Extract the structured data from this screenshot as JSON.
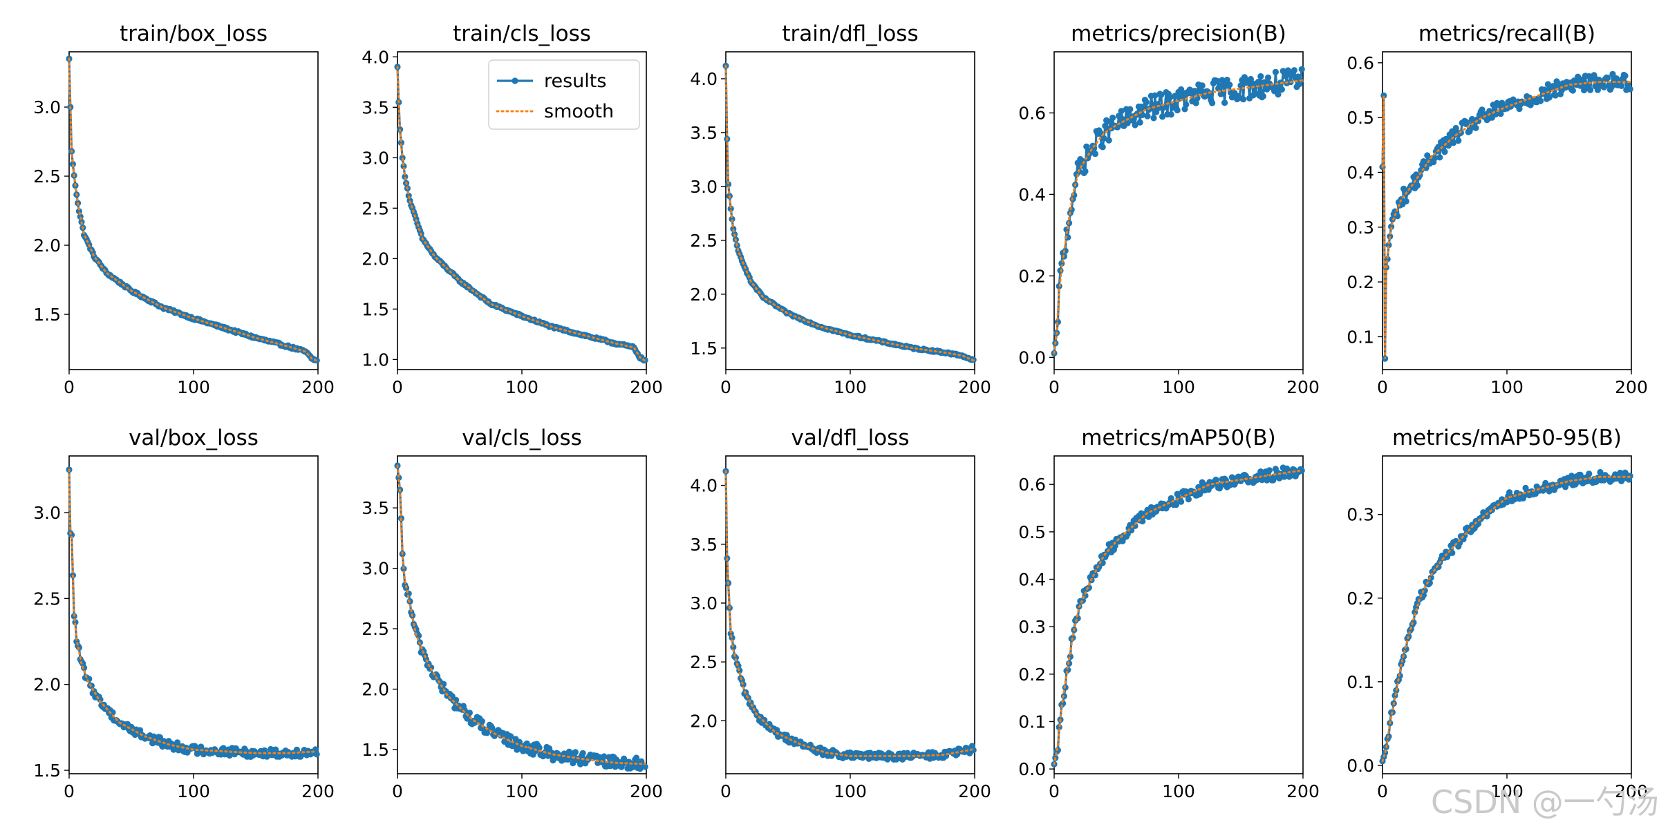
{
  "figure": {
    "legend": {
      "results": "results",
      "smooth": "smooth"
    },
    "colors": {
      "results": "#1f77b4",
      "smooth": "#ff7f0e",
      "axis": "#000000"
    },
    "watermark": "CSDN @一勺汤"
  },
  "chart_data": [
    {
      "type": "line",
      "title": "train/box_loss",
      "xlim": [
        0,
        200
      ],
      "xticks": [
        0,
        100,
        200
      ],
      "ylim": [
        1.1,
        3.4
      ],
      "yticks": [
        1.5,
        2.0,
        2.5,
        3.0
      ],
      "ytick_labels": [
        "1.5",
        "2.0",
        "2.5",
        "3.0"
      ],
      "legend": false,
      "noise": 0.008,
      "curve": [
        [
          0,
          3.35
        ],
        [
          1,
          3.0
        ],
        [
          2,
          2.68
        ],
        [
          4,
          2.5
        ],
        [
          6,
          2.37
        ],
        [
          8,
          2.25
        ],
        [
          12,
          2.08
        ],
        [
          20,
          1.92
        ],
        [
          30,
          1.8
        ],
        [
          50,
          1.67
        ],
        [
          75,
          1.55
        ],
        [
          100,
          1.47
        ],
        [
          125,
          1.4
        ],
        [
          150,
          1.33
        ],
        [
          175,
          1.27
        ],
        [
          190,
          1.23
        ],
        [
          195,
          1.18
        ],
        [
          200,
          1.16
        ]
      ]
    },
    {
      "type": "line",
      "title": "train/cls_loss",
      "xlim": [
        0,
        200
      ],
      "xticks": [
        0,
        100,
        200
      ],
      "ylim": [
        0.9,
        4.05
      ],
      "yticks": [
        1.0,
        1.5,
        2.0,
        2.5,
        3.0,
        3.5,
        4.0
      ],
      "ytick_labels": [
        "1.0",
        "1.5",
        "2.0",
        "2.5",
        "3.0",
        "3.5",
        "4.0"
      ],
      "legend": true,
      "noise": 0.01,
      "curve": [
        [
          0,
          3.9
        ],
        [
          1,
          3.55
        ],
        [
          2,
          3.28
        ],
        [
          4,
          3.0
        ],
        [
          6,
          2.82
        ],
        [
          10,
          2.57
        ],
        [
          20,
          2.2
        ],
        [
          30,
          2.02
        ],
        [
          50,
          1.78
        ],
        [
          75,
          1.55
        ],
        [
          100,
          1.43
        ],
        [
          125,
          1.32
        ],
        [
          150,
          1.24
        ],
        [
          175,
          1.16
        ],
        [
          190,
          1.12
        ],
        [
          195,
          1.02
        ],
        [
          200,
          0.98
        ]
      ]
    },
    {
      "type": "line",
      "title": "train/dfl_loss",
      "xlim": [
        0,
        200
      ],
      "xticks": [
        0,
        100,
        200
      ],
      "ylim": [
        1.3,
        4.25
      ],
      "yticks": [
        1.5,
        2.0,
        2.5,
        3.0,
        3.5,
        4.0
      ],
      "ytick_labels": [
        "1.5",
        "2.0",
        "2.5",
        "3.0",
        "3.5",
        "4.0"
      ],
      "legend": false,
      "noise": 0.008,
      "curve": [
        [
          0,
          4.12
        ],
        [
          1,
          3.44
        ],
        [
          2,
          3.02
        ],
        [
          4,
          2.8
        ],
        [
          6,
          2.6
        ],
        [
          10,
          2.4
        ],
        [
          20,
          2.12
        ],
        [
          30,
          1.97
        ],
        [
          50,
          1.82
        ],
        [
          75,
          1.7
        ],
        [
          100,
          1.62
        ],
        [
          125,
          1.56
        ],
        [
          150,
          1.5
        ],
        [
          175,
          1.46
        ],
        [
          190,
          1.43
        ],
        [
          200,
          1.38
        ]
      ]
    },
    {
      "type": "line",
      "title": "metrics/precision(B)",
      "xlim": [
        0,
        200
      ],
      "xticks": [
        0,
        100,
        200
      ],
      "ylim": [
        -0.03,
        0.75
      ],
      "yticks": [
        0.0,
        0.2,
        0.4,
        0.6
      ],
      "ytick_labels": [
        "0.0",
        "0.2",
        "0.4",
        "0.6"
      ],
      "legend": false,
      "noise": 0.03,
      "curve": [
        [
          0,
          0.01
        ],
        [
          2,
          0.06
        ],
        [
          4,
          0.16
        ],
        [
          6,
          0.22
        ],
        [
          10,
          0.3
        ],
        [
          15,
          0.4
        ],
        [
          20,
          0.46
        ],
        [
          30,
          0.51
        ],
        [
          40,
          0.55
        ],
        [
          50,
          0.57
        ],
        [
          75,
          0.61
        ],
        [
          100,
          0.63
        ],
        [
          125,
          0.65
        ],
        [
          150,
          0.66
        ],
        [
          175,
          0.67
        ],
        [
          200,
          0.68
        ]
      ]
    },
    {
      "type": "line",
      "title": "metrics/recall(B)",
      "xlim": [
        0,
        200
      ],
      "xticks": [
        0,
        100,
        200
      ],
      "ylim": [
        0.04,
        0.62
      ],
      "yticks": [
        0.1,
        0.2,
        0.3,
        0.4,
        0.5,
        0.6
      ],
      "ytick_labels": [
        "0.1",
        "0.2",
        "0.3",
        "0.4",
        "0.5",
        "0.6"
      ],
      "legend": false,
      "noise": 0.015,
      "curve": [
        [
          0,
          0.41
        ],
        [
          1,
          0.54
        ],
        [
          2,
          0.06
        ],
        [
          3,
          0.22
        ],
        [
          5,
          0.27
        ],
        [
          8,
          0.31
        ],
        [
          15,
          0.35
        ],
        [
          25,
          0.38
        ],
        [
          40,
          0.43
        ],
        [
          60,
          0.47
        ],
        [
          80,
          0.5
        ],
        [
          100,
          0.52
        ],
        [
          125,
          0.54
        ],
        [
          150,
          0.56
        ],
        [
          175,
          0.565
        ],
        [
          200,
          0.565
        ]
      ]
    },
    {
      "type": "line",
      "title": "val/box_loss",
      "xlim": [
        0,
        200
      ],
      "xticks": [
        0,
        100,
        200
      ],
      "ylim": [
        1.48,
        3.33
      ],
      "yticks": [
        1.5,
        2.0,
        2.5,
        3.0
      ],
      "ytick_labels": [
        "1.5",
        "2.0",
        "2.5",
        "3.0"
      ],
      "legend": false,
      "noise": 0.025,
      "curve": [
        [
          0,
          3.25
        ],
        [
          1,
          2.88
        ],
        [
          2,
          2.87
        ],
        [
          4,
          2.42
        ],
        [
          6,
          2.26
        ],
        [
          10,
          2.12
        ],
        [
          15,
          2.02
        ],
        [
          25,
          1.9
        ],
        [
          40,
          1.78
        ],
        [
          60,
          1.7
        ],
        [
          80,
          1.65
        ],
        [
          100,
          1.62
        ],
        [
          125,
          1.61
        ],
        [
          150,
          1.6
        ],
        [
          175,
          1.6
        ],
        [
          200,
          1.61
        ]
      ]
    },
    {
      "type": "line",
      "title": "val/cls_loss",
      "xlim": [
        0,
        200
      ],
      "xticks": [
        0,
        100,
        200
      ],
      "ylim": [
        1.3,
        3.93
      ],
      "yticks": [
        1.5,
        2.0,
        2.5,
        3.0,
        3.5
      ],
      "ytick_labels": [
        "1.5",
        "2.0",
        "2.5",
        "3.0",
        "3.5"
      ],
      "legend": false,
      "noise": 0.05,
      "curve": [
        [
          0,
          3.85
        ],
        [
          2,
          3.65
        ],
        [
          4,
          3.1
        ],
        [
          6,
          2.9
        ],
        [
          10,
          2.7
        ],
        [
          15,
          2.45
        ],
        [
          25,
          2.2
        ],
        [
          40,
          1.95
        ],
        [
          60,
          1.75
        ],
        [
          80,
          1.62
        ],
        [
          100,
          1.53
        ],
        [
          125,
          1.46
        ],
        [
          150,
          1.42
        ],
        [
          175,
          1.39
        ],
        [
          200,
          1.38
        ]
      ]
    },
    {
      "type": "line",
      "title": "val/dfl_loss",
      "xlim": [
        0,
        200
      ],
      "xticks": [
        0,
        100,
        200
      ],
      "ylim": [
        1.55,
        4.25
      ],
      "yticks": [
        2.0,
        2.5,
        3.0,
        3.5,
        4.0
      ],
      "ytick_labels": [
        "2.0",
        "2.5",
        "3.0",
        "3.5",
        "4.0"
      ],
      "legend": false,
      "noise": 0.03,
      "curve": [
        [
          0,
          4.12
        ],
        [
          1,
          3.38
        ],
        [
          4,
          2.75
        ],
        [
          6,
          2.6
        ],
        [
          10,
          2.45
        ],
        [
          15,
          2.25
        ],
        [
          25,
          2.05
        ],
        [
          40,
          1.9
        ],
        [
          60,
          1.8
        ],
        [
          80,
          1.73
        ],
        [
          100,
          1.7
        ],
        [
          125,
          1.7
        ],
        [
          150,
          1.7
        ],
        [
          175,
          1.71
        ],
        [
          200,
          1.76
        ]
      ]
    },
    {
      "type": "line",
      "title": "metrics/mAP50(B)",
      "xlim": [
        0,
        200
      ],
      "xticks": [
        0,
        100,
        200
      ],
      "ylim": [
        -0.01,
        0.66
      ],
      "yticks": [
        0.0,
        0.1,
        0.2,
        0.3,
        0.4,
        0.5,
        0.6
      ],
      "ytick_labels": [
        "0.0",
        "0.1",
        "0.2",
        "0.3",
        "0.4",
        "0.5",
        "0.6"
      ],
      "legend": false,
      "noise": 0.012,
      "curve": [
        [
          0,
          0.01
        ],
        [
          3,
          0.05
        ],
        [
          6,
          0.13
        ],
        [
          10,
          0.2
        ],
        [
          15,
          0.28
        ],
        [
          20,
          0.34
        ],
        [
          30,
          0.4
        ],
        [
          40,
          0.45
        ],
        [
          50,
          0.48
        ],
        [
          75,
          0.54
        ],
        [
          100,
          0.57
        ],
        [
          125,
          0.6
        ],
        [
          150,
          0.61
        ],
        [
          175,
          0.62
        ],
        [
          200,
          0.63
        ]
      ]
    },
    {
      "type": "line",
      "title": "metrics/mAP50-95(B)",
      "xlim": [
        0,
        200
      ],
      "xticks": [
        0,
        100,
        200
      ],
      "ylim": [
        -0.01,
        0.37
      ],
      "yticks": [
        0.0,
        0.1,
        0.2,
        0.3
      ],
      "ytick_labels": [
        "0.0",
        "0.1",
        "0.2",
        "0.3"
      ],
      "legend": false,
      "noise": 0.006,
      "curve": [
        [
          0,
          0.005
        ],
        [
          3,
          0.02
        ],
        [
          6,
          0.05
        ],
        [
          10,
          0.08
        ],
        [
          15,
          0.12
        ],
        [
          20,
          0.15
        ],
        [
          30,
          0.2
        ],
        [
          40,
          0.23
        ],
        [
          50,
          0.25
        ],
        [
          75,
          0.29
        ],
        [
          100,
          0.32
        ],
        [
          125,
          0.33
        ],
        [
          150,
          0.34
        ],
        [
          175,
          0.345
        ],
        [
          200,
          0.345
        ]
      ]
    }
  ]
}
